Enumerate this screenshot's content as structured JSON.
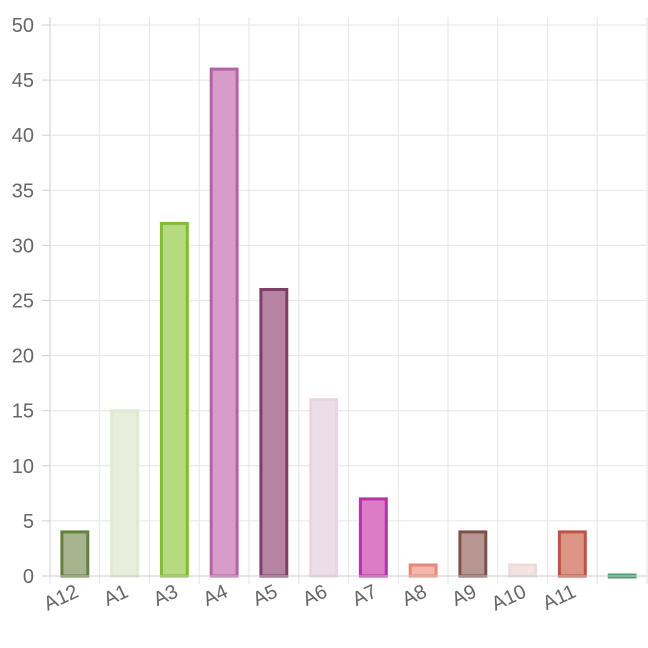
{
  "chart_data": {
    "type": "bar",
    "title": "",
    "xlabel": "",
    "ylabel": "",
    "ylim": [
      0,
      50
    ],
    "yticks": [
      0,
      5,
      10,
      15,
      20,
      25,
      30,
      35,
      40,
      45,
      50
    ],
    "grid": true,
    "legend": "none",
    "categories": [
      "A12",
      "A1",
      "A3",
      "A4",
      "A5",
      "A6",
      "A7",
      "A8",
      "A9",
      "A10",
      "A11",
      ""
    ],
    "values": [
      4,
      15,
      32,
      46,
      26,
      16,
      7,
      1,
      4,
      1,
      4,
      0
    ],
    "fill_colors": [
      "#a4b48f",
      "#e7efdc",
      "#b6da80",
      "#d79cc8",
      "#b584a3",
      "#ecdde8",
      "#dc7bc6",
      "#f3b7aa",
      "#b79591",
      "#f1e4e2",
      "#dc9484",
      "#6fb195"
    ],
    "stroke_colors": [
      "#667f3d",
      "#dfead2",
      "#7fbd37",
      "#b660a8",
      "#7f3e6a",
      "#e9d5e2",
      "#b732a4",
      "#e58a75",
      "#7f5049",
      "#ebdbd9",
      "#bf5240",
      "#4f9c73"
    ]
  }
}
